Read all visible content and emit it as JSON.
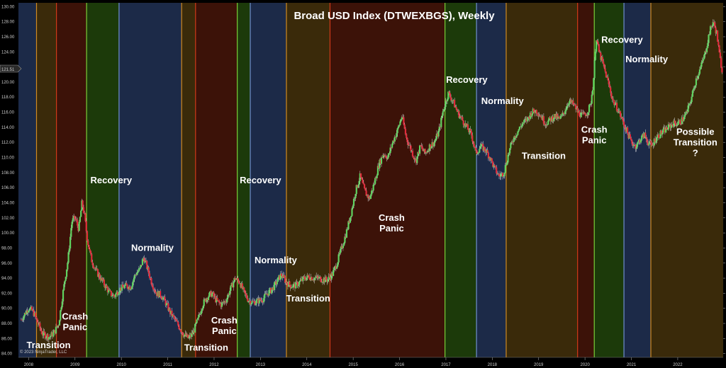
{
  "chart_data": {
    "type": "candlestick",
    "title": "Broad USD Index (DTWEXBGS), Weekly",
    "copyright": "© 2023 NinjaTrader, LLC",
    "price_marker": "121.51",
    "ylim": [
      83.5,
      130.5
    ],
    "xlim": [
      2007.78,
      2022.98
    ],
    "y_ticks": [
      84,
      86,
      88,
      90,
      92,
      94,
      96,
      98,
      100,
      102,
      104,
      106,
      108,
      110,
      112,
      114,
      116,
      118,
      120,
      122,
      124,
      126,
      128,
      130
    ],
    "x_ticks": [
      {
        "label": "2008",
        "x": 2008.0
      },
      {
        "label": "2009",
        "x": 2009.0
      },
      {
        "label": "2010",
        "x": 2010.0
      },
      {
        "label": "2011",
        "x": 2011.0
      },
      {
        "label": "2012",
        "x": 2012.0
      },
      {
        "label": "2013",
        "x": 2013.0
      },
      {
        "label": "2014",
        "x": 2014.0
      },
      {
        "label": "2015",
        "x": 2015.0
      },
      {
        "label": "2016",
        "x": 2016.0
      },
      {
        "label": "2017",
        "x": 2017.0
      },
      {
        "label": "2018",
        "x": 2018.0
      },
      {
        "label": "2019",
        "x": 2019.0
      },
      {
        "label": "2020",
        "x": 2020.0
      },
      {
        "label": "2021",
        "x": 2021.0
      },
      {
        "label": "2022",
        "x": 2022.0
      }
    ],
    "phase_colors": {
      "normality": "#1c2a48",
      "transition": "#3a2a0a",
      "crash": "#3c1208",
      "recovery": "#1c3a0a"
    },
    "boundary_colors": {
      "normality": "#6f8fd0",
      "transition": "#d08a20",
      "crash": "#d03a1a",
      "recovery": "#7ad03a"
    },
    "candle_colors": {
      "up": "#5fd35f",
      "down": "#e02a3a"
    },
    "phases": [
      {
        "type": "normality",
        "start": 2007.78,
        "end": 2008.17
      },
      {
        "type": "transition",
        "start": 2008.17,
        "end": 2008.6
      },
      {
        "type": "crash",
        "start": 2008.6,
        "end": 2009.25
      },
      {
        "type": "recovery",
        "start": 2009.25,
        "end": 2009.95
      },
      {
        "type": "normality",
        "start": 2009.95,
        "end": 2011.3
      },
      {
        "type": "transition",
        "start": 2011.3,
        "end": 2011.6
      },
      {
        "type": "crash",
        "start": 2011.6,
        "end": 2012.5
      },
      {
        "type": "recovery",
        "start": 2012.5,
        "end": 2012.78
      },
      {
        "type": "normality",
        "start": 2012.78,
        "end": 2013.56
      },
      {
        "type": "transition",
        "start": 2013.56,
        "end": 2014.5
      },
      {
        "type": "crash",
        "start": 2014.5,
        "end": 2016.98
      },
      {
        "type": "recovery",
        "start": 2016.98,
        "end": 2017.66
      },
      {
        "type": "normality",
        "start": 2017.66,
        "end": 2018.3
      },
      {
        "type": "transition",
        "start": 2018.3,
        "end": 2019.84
      },
      {
        "type": "crash",
        "start": 2019.84,
        "end": 2020.2
      },
      {
        "type": "recovery",
        "start": 2020.2,
        "end": 2020.84
      },
      {
        "type": "normality",
        "start": 2020.84,
        "end": 2021.42
      },
      {
        "type": "transition",
        "start": 2021.42,
        "end": 2022.98
      }
    ],
    "labels": [
      {
        "text": "Transition",
        "x": 2008.43,
        "y": 84.7
      },
      {
        "text": "Crash\nPanic",
        "x": 2009.0,
        "y": 88.5
      },
      {
        "text": "Recovery",
        "x": 2009.78,
        "y": 106.6
      },
      {
        "text": "Normality",
        "x": 2010.67,
        "y": 97.6
      },
      {
        "text": "Transition",
        "x": 2011.83,
        "y": 84.4
      },
      {
        "text": "Crash\nPanic",
        "x": 2012.22,
        "y": 88.0
      },
      {
        "text": "Recovery",
        "x": 2013.0,
        "y": 106.6
      },
      {
        "text": "Normality",
        "x": 2013.33,
        "y": 96.0
      },
      {
        "text": "Transition",
        "x": 2014.03,
        "y": 90.9
      },
      {
        "text": "Crash\nPanic",
        "x": 2015.83,
        "y": 101.6
      },
      {
        "text": "Recovery",
        "x": 2017.45,
        "y": 119.9
      },
      {
        "text": "Normality",
        "x": 2018.22,
        "y": 117.1
      },
      {
        "text": "Transition",
        "x": 2019.11,
        "y": 109.8
      },
      {
        "text": "Crash\nPanic",
        "x": 2020.2,
        "y": 113.3
      },
      {
        "text": "Recovery",
        "x": 2020.8,
        "y": 125.2
      },
      {
        "text": "Normality",
        "x": 2021.33,
        "y": 122.6
      },
      {
        "text": "Possible\nTransition\n?",
        "x": 2022.38,
        "y": 113.0
      }
    ],
    "price_path": [
      [
        2007.84,
        88.5
      ],
      [
        2008.0,
        90.1
      ],
      [
        2008.1,
        89.5
      ],
      [
        2008.2,
        88.0
      ],
      [
        2008.3,
        86.6
      ],
      [
        2008.45,
        86.2
      ],
      [
        2008.55,
        86.8
      ],
      [
        2008.65,
        88.0
      ],
      [
        2008.75,
        92.5
      ],
      [
        2008.85,
        96.5
      ],
      [
        2008.93,
        101.5
      ],
      [
        2009.0,
        102.0
      ],
      [
        2009.08,
        100.5
      ],
      [
        2009.15,
        104.0
      ],
      [
        2009.2,
        102.5
      ],
      [
        2009.27,
        99.0
      ],
      [
        2009.35,
        96.5
      ],
      [
        2009.45,
        95.0
      ],
      [
        2009.55,
        94.0
      ],
      [
        2009.65,
        93.0
      ],
      [
        2009.75,
        92.0
      ],
      [
        2009.85,
        91.6
      ],
      [
        2009.95,
        92.5
      ],
      [
        2010.1,
        93.0
      ],
      [
        2010.2,
        92.8
      ],
      [
        2010.3,
        94.5
      ],
      [
        2010.4,
        95.2
      ],
      [
        2010.48,
        96.8
      ],
      [
        2010.55,
        95.5
      ],
      [
        2010.65,
        93.5
      ],
      [
        2010.75,
        92.0
      ],
      [
        2010.85,
        91.8
      ],
      [
        2010.95,
        90.8
      ],
      [
        2011.05,
        89.5
      ],
      [
        2011.15,
        88.5
      ],
      [
        2011.25,
        87.5
      ],
      [
        2011.35,
        86.5
      ],
      [
        2011.45,
        86.0
      ],
      [
        2011.55,
        86.8
      ],
      [
        2011.65,
        88.5
      ],
      [
        2011.75,
        90.5
      ],
      [
        2011.85,
        91.5
      ],
      [
        2011.95,
        92.0
      ],
      [
        2012.05,
        91.0
      ],
      [
        2012.15,
        90.5
      ],
      [
        2012.25,
        91.0
      ],
      [
        2012.35,
        92.5
      ],
      [
        2012.45,
        94.0
      ],
      [
        2012.55,
        93.5
      ],
      [
        2012.65,
        92.0
      ],
      [
        2012.75,
        91.0
      ],
      [
        2012.85,
        90.8
      ],
      [
        2012.95,
        91.0
      ],
      [
        2013.05,
        91.2
      ],
      [
        2013.15,
        92.0
      ],
      [
        2013.25,
        92.5
      ],
      [
        2013.35,
        93.5
      ],
      [
        2013.45,
        94.5
      ],
      [
        2013.55,
        93.5
      ],
      [
        2013.65,
        93.0
      ],
      [
        2013.75,
        93.0
      ],
      [
        2013.85,
        93.5
      ],
      [
        2013.95,
        94.0
      ],
      [
        2014.05,
        94.2
      ],
      [
        2014.15,
        94.0
      ],
      [
        2014.25,
        94.0
      ],
      [
        2014.35,
        93.8
      ],
      [
        2014.45,
        93.8
      ],
      [
        2014.55,
        94.5
      ],
      [
        2014.65,
        96.0
      ],
      [
        2014.75,
        98.0
      ],
      [
        2014.85,
        100.0
      ],
      [
        2014.95,
        102.5
      ],
      [
        2015.05,
        105.5
      ],
      [
        2015.15,
        107.5
      ],
      [
        2015.25,
        105.5
      ],
      [
        2015.35,
        104.5
      ],
      [
        2015.45,
        106.5
      ],
      [
        2015.55,
        109.0
      ],
      [
        2015.65,
        110.5
      ],
      [
        2015.75,
        110.0
      ],
      [
        2015.85,
        112.0
      ],
      [
        2015.95,
        113.5
      ],
      [
        2016.05,
        115.5
      ],
      [
        2016.15,
        112.5
      ],
      [
        2016.25,
        111.0
      ],
      [
        2016.35,
        109.5
      ],
      [
        2016.45,
        111.5
      ],
      [
        2016.55,
        110.5
      ],
      [
        2016.65,
        111.5
      ],
      [
        2016.75,
        112.0
      ],
      [
        2016.85,
        113.5
      ],
      [
        2016.95,
        116.5
      ],
      [
        2017.05,
        118.5
      ],
      [
        2017.15,
        117.5
      ],
      [
        2017.25,
        116.0
      ],
      [
        2017.35,
        115.0
      ],
      [
        2017.45,
        114.0
      ],
      [
        2017.55,
        113.0
      ],
      [
        2017.65,
        110.5
      ],
      [
        2017.75,
        111.5
      ],
      [
        2017.85,
        111.0
      ],
      [
        2017.95,
        110.0
      ],
      [
        2018.05,
        108.5
      ],
      [
        2018.15,
        107.5
      ],
      [
        2018.25,
        108.0
      ],
      [
        2018.35,
        110.5
      ],
      [
        2018.45,
        112.5
      ],
      [
        2018.55,
        113.5
      ],
      [
        2018.65,
        114.5
      ],
      [
        2018.75,
        115.0
      ],
      [
        2018.85,
        116.0
      ],
      [
        2018.95,
        116.2
      ],
      [
        2019.05,
        115.5
      ],
      [
        2019.15,
        114.5
      ],
      [
        2019.25,
        115.0
      ],
      [
        2019.35,
        115.5
      ],
      [
        2019.45,
        115.0
      ],
      [
        2019.55,
        116.0
      ],
      [
        2019.65,
        117.5
      ],
      [
        2019.75,
        117.0
      ],
      [
        2019.85,
        116.0
      ],
      [
        2019.95,
        115.5
      ],
      [
        2020.05,
        116.0
      ],
      [
        2020.12,
        117.0
      ],
      [
        2020.18,
        120.0
      ],
      [
        2020.24,
        126.0
      ],
      [
        2020.3,
        124.0
      ],
      [
        2020.38,
        122.5
      ],
      [
        2020.45,
        121.0
      ],
      [
        2020.52,
        119.5
      ],
      [
        2020.6,
        117.5
      ],
      [
        2020.7,
        116.5
      ],
      [
        2020.8,
        115.0
      ],
      [
        2020.9,
        113.5
      ],
      [
        2021.0,
        112.0
      ],
      [
        2021.1,
        111.5
      ],
      [
        2021.2,
        112.5
      ],
      [
        2021.28,
        113.0
      ],
      [
        2021.36,
        112.0
      ],
      [
        2021.44,
        111.5
      ],
      [
        2021.52,
        112.5
      ],
      [
        2021.6,
        113.0
      ],
      [
        2021.7,
        113.5
      ],
      [
        2021.8,
        114.0
      ],
      [
        2021.9,
        114.5
      ],
      [
        2022.0,
        114.5
      ],
      [
        2022.1,
        115.0
      ],
      [
        2022.2,
        116.0
      ],
      [
        2022.3,
        118.0
      ],
      [
        2022.4,
        120.5
      ],
      [
        2022.5,
        122.0
      ],
      [
        2022.6,
        124.0
      ],
      [
        2022.68,
        126.5
      ],
      [
        2022.76,
        128.0
      ],
      [
        2022.84,
        126.5
      ],
      [
        2022.9,
        123.5
      ],
      [
        2022.96,
        121.5
      ]
    ]
  }
}
